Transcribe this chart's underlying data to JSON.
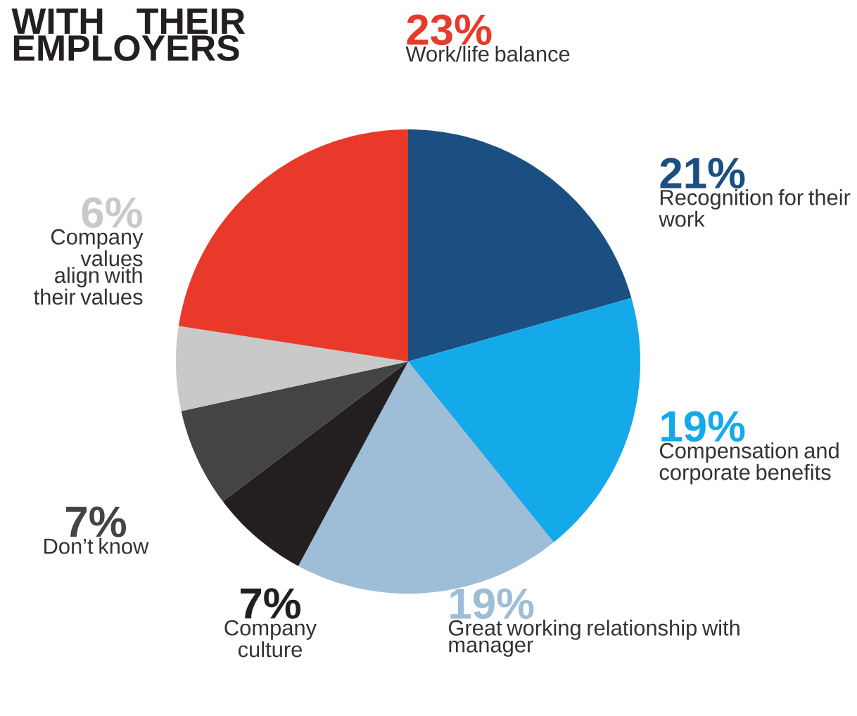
{
  "chart_data": {
    "type": "pie",
    "title": "WITH THEIR EMPLOYERS",
    "categories": [
      "Recognition for their work",
      "Compensation and corporate benefits",
      "Great working relationship with manager",
      "Company culture",
      "Don’t know",
      "Company values align with their values",
      "Work/life balance"
    ],
    "values": [
      21,
      19,
      19,
      7,
      7,
      6,
      23
    ],
    "value_labels": [
      "21%",
      "19%",
      "19%",
      "7%",
      "7%",
      "6%",
      "23%"
    ],
    "colors": [
      "#1b4f82",
      "#14aaea",
      "#9ebdd6",
      "#231f20",
      "#444444",
      "#c9c9c9",
      "#e8392a"
    ]
  }
}
